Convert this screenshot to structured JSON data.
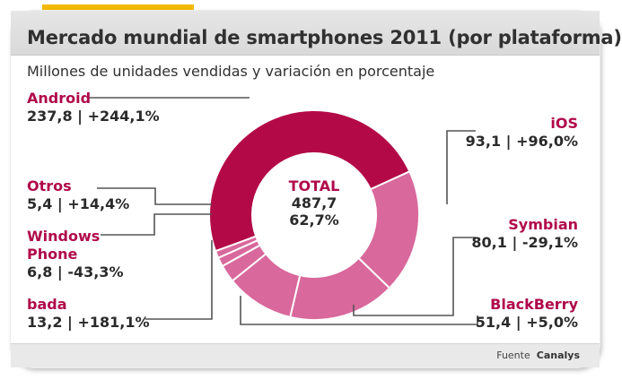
{
  "title": "Mercado mundial de smartphones 2011 (por plataforma)",
  "subtitle": "Millones de unidades vendidas y variación en porcentaje",
  "center": {
    "label": "TOTAL",
    "total": "487,7",
    "change": "62,7%"
  },
  "source": {
    "prefix": "Fuente",
    "name": "Canalys"
  },
  "colors": {
    "accent": "#f2b800",
    "android": "#b30a47",
    "others": "#d9689c",
    "label": "#b0094b",
    "leader": "#555555"
  },
  "chart_data": {
    "type": "pie",
    "donut": true,
    "title": "Mercado mundial de smartphones 2011 (por plataforma)",
    "subtitle": "Millones de unidades vendidas y variación en porcentaje",
    "series": [
      {
        "name": "Android",
        "value": 237.8,
        "change": 244.1,
        "label": "237,8 | +244,1%"
      },
      {
        "name": "iOS",
        "value": 93.1,
        "change": 96.0,
        "label": "93,1 | +96,0%"
      },
      {
        "name": "Symbian",
        "value": 80.1,
        "change": -29.1,
        "label": "80,1 | -29,1%"
      },
      {
        "name": "BlackBerry",
        "value": 51.4,
        "change": 5.0,
        "label": "51,4 | +5,0%"
      },
      {
        "name": "bada",
        "value": 13.2,
        "change": 181.1,
        "label": "13,2 | +181,1%"
      },
      {
        "name": "Windows Phone",
        "value": 6.8,
        "change": -43.3,
        "label": "6,8 | -43,3%"
      },
      {
        "name": "Otros",
        "value": 5.4,
        "change": 14.4,
        "label": "5,4 | +14,4%"
      }
    ],
    "total": 487.7,
    "total_change": 62.7
  }
}
